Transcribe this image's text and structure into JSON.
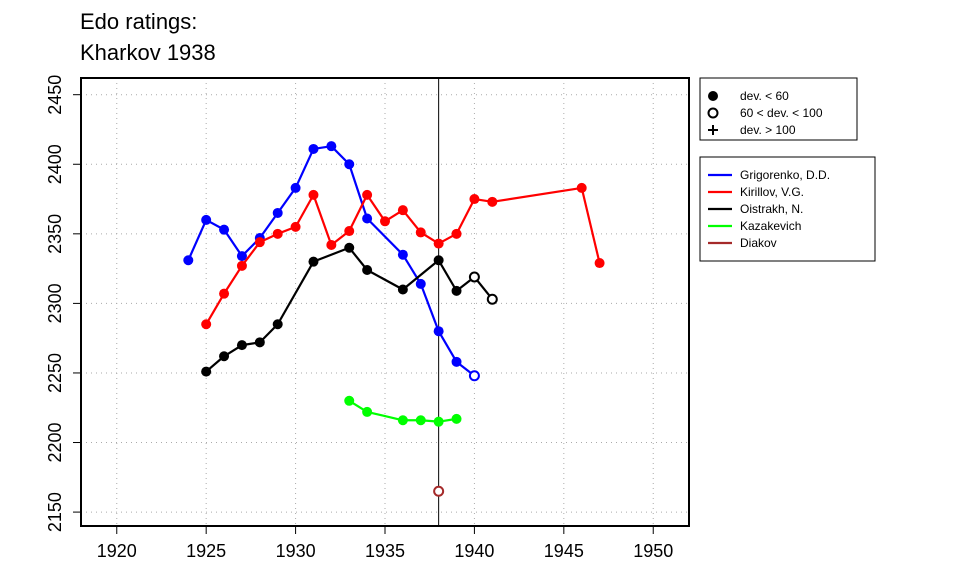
{
  "chart_data": {
    "type": "line",
    "title_lines": [
      "Edo ratings:",
      "Kharkov 1938"
    ],
    "xlabel": "",
    "ylabel": "",
    "xlim": [
      1918,
      1952
    ],
    "ylim": [
      2140,
      2462
    ],
    "xticks": [
      1920,
      1925,
      1930,
      1935,
      1940,
      1945,
      1950
    ],
    "yticks": [
      2150,
      2200,
      2250,
      2300,
      2350,
      2400,
      2450
    ],
    "grid": true,
    "reference_line_x": 1938,
    "marker_legend": {
      "placement": "top-right",
      "entries": [
        {
          "marker": "filled-circle",
          "label": "dev. < 60"
        },
        {
          "marker": "open-circle",
          "label": "60 < dev. < 100"
        },
        {
          "marker": "plus",
          "label": "dev. > 100"
        }
      ]
    },
    "series": [
      {
        "name": "Grigorenko, D.D.",
        "color": "#0000ff",
        "points": [
          {
            "x": 1924,
            "y": 2331,
            "m": "filled"
          },
          {
            "x": 1925,
            "y": 2360,
            "m": "filled"
          },
          {
            "x": 1926,
            "y": 2353,
            "m": "filled"
          },
          {
            "x": 1927,
            "y": 2334,
            "m": "filled"
          },
          {
            "x": 1928,
            "y": 2347,
            "m": "filled"
          },
          {
            "x": 1929,
            "y": 2365,
            "m": "filled"
          },
          {
            "x": 1930,
            "y": 2383,
            "m": "filled"
          },
          {
            "x": 1931,
            "y": 2411,
            "m": "filled"
          },
          {
            "x": 1932,
            "y": 2413,
            "m": "filled"
          },
          {
            "x": 1933,
            "y": 2400,
            "m": "filled"
          },
          {
            "x": 1934,
            "y": 2361,
            "m": "filled"
          },
          {
            "x": 1936,
            "y": 2335,
            "m": "filled"
          },
          {
            "x": 1937,
            "y": 2314,
            "m": "filled"
          },
          {
            "x": 1938,
            "y": 2280,
            "m": "filled"
          },
          {
            "x": 1939,
            "y": 2258,
            "m": "filled"
          },
          {
            "x": 1940,
            "y": 2248,
            "m": "open"
          }
        ]
      },
      {
        "name": "Kirillov, V.G.",
        "color": "#ff0000",
        "points": [
          {
            "x": 1925,
            "y": 2285,
            "m": "filled"
          },
          {
            "x": 1926,
            "y": 2307,
            "m": "filled"
          },
          {
            "x": 1927,
            "y": 2327,
            "m": "filled"
          },
          {
            "x": 1928,
            "y": 2344,
            "m": "filled"
          },
          {
            "x": 1929,
            "y": 2350,
            "m": "filled"
          },
          {
            "x": 1930,
            "y": 2355,
            "m": "filled"
          },
          {
            "x": 1931,
            "y": 2378,
            "m": "filled"
          },
          {
            "x": 1932,
            "y": 2342,
            "m": "filled"
          },
          {
            "x": 1933,
            "y": 2352,
            "m": "filled"
          },
          {
            "x": 1934,
            "y": 2378,
            "m": "filled"
          },
          {
            "x": 1935,
            "y": 2359,
            "m": "filled"
          },
          {
            "x": 1936,
            "y": 2367,
            "m": "filled"
          },
          {
            "x": 1937,
            "y": 2351,
            "m": "filled"
          },
          {
            "x": 1938,
            "y": 2343,
            "m": "filled"
          },
          {
            "x": 1939,
            "y": 2350,
            "m": "filled"
          },
          {
            "x": 1940,
            "y": 2375,
            "m": "filled"
          },
          {
            "x": 1941,
            "y": 2373,
            "m": "filled"
          },
          {
            "x": 1946,
            "y": 2383,
            "m": "filled"
          },
          {
            "x": 1947,
            "y": 2329,
            "m": "filled"
          }
        ]
      },
      {
        "name": "Oistrakh, N.",
        "color": "#000000",
        "points": [
          {
            "x": 1925,
            "y": 2251,
            "m": "filled"
          },
          {
            "x": 1926,
            "y": 2262,
            "m": "filled"
          },
          {
            "x": 1927,
            "y": 2270,
            "m": "filled"
          },
          {
            "x": 1928,
            "y": 2272,
            "m": "filled"
          },
          {
            "x": 1929,
            "y": 2285,
            "m": "filled"
          },
          {
            "x": 1931,
            "y": 2330,
            "m": "filled"
          },
          {
            "x": 1933,
            "y": 2340,
            "m": "filled"
          },
          {
            "x": 1934,
            "y": 2324,
            "m": "filled"
          },
          {
            "x": 1936,
            "y": 2310,
            "m": "filled"
          },
          {
            "x": 1938,
            "y": 2331,
            "m": "filled"
          },
          {
            "x": 1939,
            "y": 2309,
            "m": "filled"
          },
          {
            "x": 1940,
            "y": 2319,
            "m": "open"
          },
          {
            "x": 1941,
            "y": 2303,
            "m": "open"
          }
        ]
      },
      {
        "name": "Kazakevich",
        "color": "#00ff00",
        "points": [
          {
            "x": 1933,
            "y": 2230,
            "m": "filled"
          },
          {
            "x": 1934,
            "y": 2222,
            "m": "filled"
          },
          {
            "x": 1936,
            "y": 2216,
            "m": "filled"
          },
          {
            "x": 1937,
            "y": 2216,
            "m": "filled"
          },
          {
            "x": 1938,
            "y": 2215,
            "m": "filled"
          },
          {
            "x": 1939,
            "y": 2217,
            "m": "filled"
          }
        ]
      },
      {
        "name": "Diakov",
        "color": "#a52a2a",
        "points": [
          {
            "x": 1938,
            "y": 2165,
            "m": "open"
          }
        ]
      }
    ]
  }
}
